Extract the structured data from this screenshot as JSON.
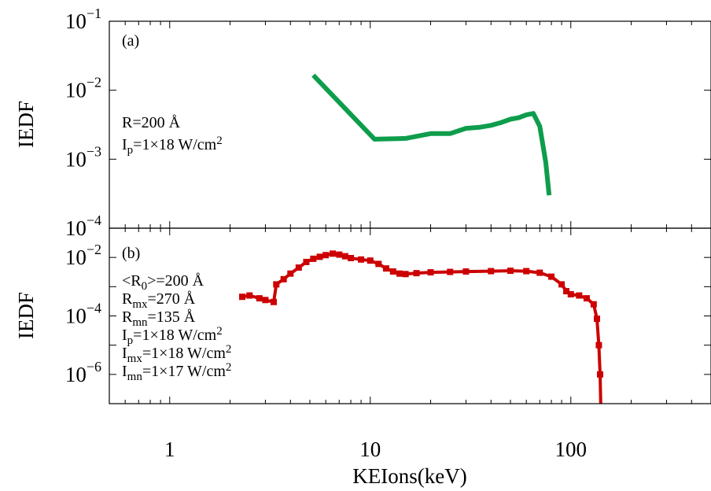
{
  "chart_data": [
    {
      "panel": "(a)",
      "type": "line",
      "xscale": "log",
      "yscale": "log",
      "xlim": [
        0.5,
        500
      ],
      "ylim": [
        0.0001,
        0.1
      ],
      "ylabel": "IEDF",
      "grid": false,
      "y_ticks": [
        {
          "base": "10",
          "exp": "−4",
          "value": 0.0001
        },
        {
          "base": "10",
          "exp": "−3",
          "value": 0.001
        },
        {
          "base": "10",
          "exp": "−2",
          "value": 0.01
        },
        {
          "base": "10",
          "exp": "−1",
          "value": 0.1
        }
      ],
      "annotations": [
        {
          "parts": [
            {
              "t": "R=200 Å"
            }
          ]
        },
        {
          "parts": [
            {
              "t": "I"
            },
            {
              "t": "p",
              "sub": true
            },
            {
              "t": "=1×18 W/cm"
            },
            {
              "t": "2",
              "sup": true
            }
          ]
        }
      ],
      "series": [
        {
          "color": "#0e9d4c",
          "x": [
            5.2,
            10.5,
            15,
            20,
            25,
            30,
            35,
            40,
            45,
            50,
            55,
            60,
            65,
            70,
            75,
            78
          ],
          "y": [
            0.0165,
            0.00195,
            0.002,
            0.00235,
            0.00235,
            0.0028,
            0.0029,
            0.0031,
            0.0034,
            0.0038,
            0.004,
            0.0044,
            0.0046,
            0.003,
            0.0009,
            0.0003
          ]
        }
      ]
    },
    {
      "panel": "(b)",
      "type": "line",
      "xscale": "log",
      "yscale": "log",
      "xlim": [
        0.5,
        500
      ],
      "ylim": [
        1e-07,
        0.1
      ],
      "xlabel": "KEIons(keV)",
      "ylabel": "IEDF",
      "grid": false,
      "x_ticks": [
        {
          "label": "1",
          "value": 1
        },
        {
          "label": "10",
          "value": 10
        },
        {
          "label": "100",
          "value": 100
        }
      ],
      "y_ticks": [
        {
          "base": "10",
          "exp": "−6",
          "value": 1e-06
        },
        {
          "base": "10",
          "exp": "−4",
          "value": 0.0001
        },
        {
          "base": "10",
          "exp": "−2",
          "value": 0.01
        }
      ],
      "annotations": [
        {
          "parts": [
            {
              "t": "<R"
            },
            {
              "t": "0",
              "sub": true
            },
            {
              "t": ">=200 Å"
            }
          ]
        },
        {
          "parts": [
            {
              "t": "R"
            },
            {
              "t": "mx",
              "sub": true
            },
            {
              "t": "=270 Å"
            }
          ]
        },
        {
          "parts": [
            {
              "t": "R"
            },
            {
              "t": "mn",
              "sub": true
            },
            {
              "t": "=135 Å"
            }
          ]
        },
        {
          "parts": [
            {
              "t": "I"
            },
            {
              "t": "p",
              "sub": true
            },
            {
              "t": "=1×18 W/cm"
            },
            {
              "t": "2",
              "sup": true
            }
          ]
        },
        {
          "parts": [
            {
              "t": "I"
            },
            {
              "t": "mx",
              "sub": true
            },
            {
              "t": "=1×18 W/cm"
            },
            {
              "t": "2",
              "sup": true
            }
          ]
        },
        {
          "parts": [
            {
              "t": "I"
            },
            {
              "t": "mn",
              "sub": true
            },
            {
              "t": "=1×17 W/cm"
            },
            {
              "t": "2",
              "sup": true
            }
          ]
        }
      ],
      "series": [
        {
          "color": "#cc0000",
          "marker": "square",
          "x": [
            2.3,
            2.5,
            2.8,
            3.0,
            3.3,
            3.4,
            3.7,
            4.0,
            4.4,
            4.8,
            5.2,
            5.6,
            6.0,
            6.5,
            7.0,
            7.5,
            8.0,
            9.0,
            10.0,
            11.0,
            12.0,
            13.0,
            14.0,
            15.0,
            17.0,
            20.0,
            25.0,
            30.0,
            40.0,
            50.0,
            60.0,
            70.0,
            80.0,
            90.0,
            95.0,
            100.0,
            110.0,
            120.0,
            130.0,
            135.0,
            138.0,
            140.0,
            141.0
          ],
          "y": [
            0.00045,
            0.0005,
            0.0004,
            0.00035,
            0.0003,
            0.0012,
            0.0018,
            0.0028,
            0.0045,
            0.007,
            0.009,
            0.0105,
            0.012,
            0.0135,
            0.0125,
            0.011,
            0.0095,
            0.0085,
            0.0078,
            0.006,
            0.0042,
            0.0033,
            0.0028,
            0.0027,
            0.0029,
            0.0031,
            0.0032,
            0.0033,
            0.0034,
            0.0035,
            0.0034,
            0.003,
            0.0022,
            0.0012,
            0.0007,
            0.00055,
            0.0005,
            0.0004,
            0.00025,
            8e-05,
            1e-05,
            1e-06,
            1e-07
          ]
        }
      ]
    }
  ]
}
